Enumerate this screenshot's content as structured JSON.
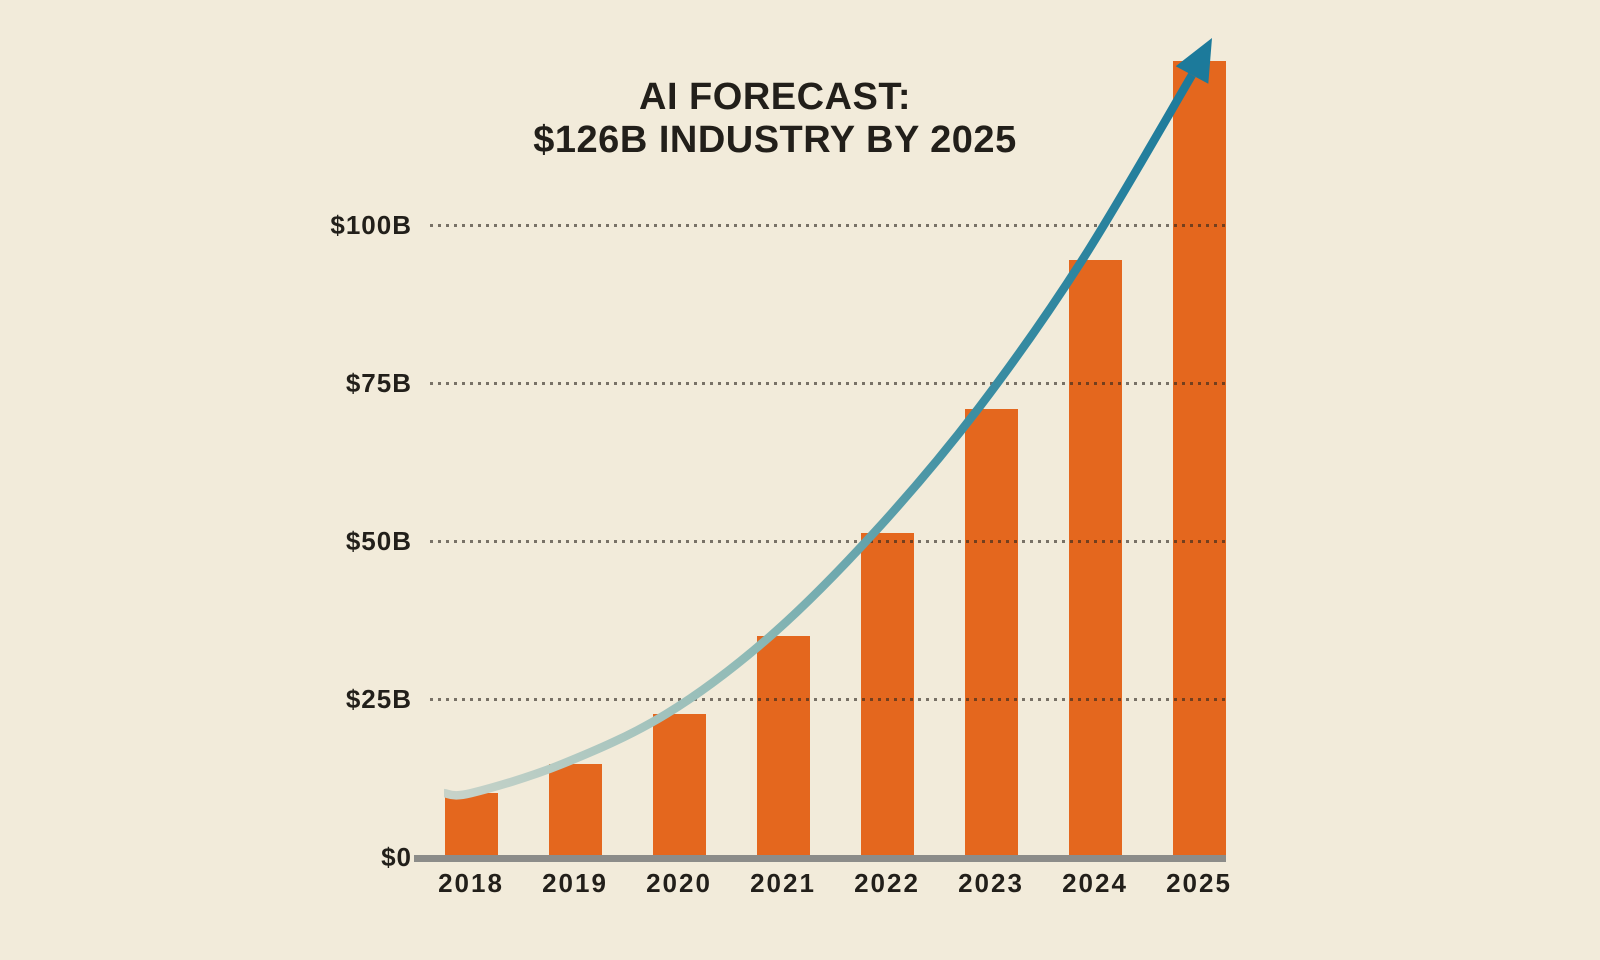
{
  "chart": {
    "title_line1": "AI FORECAST:",
    "title_line2": "$126B INDUSTRY BY 2025"
  },
  "chart_data": {
    "type": "bar",
    "title": "AI FORECAST: $126B INDUSTRY BY 2025",
    "unit": "billion USD",
    "categories": [
      "2018",
      "2019",
      "2020",
      "2021",
      "2022",
      "2023",
      "2024",
      "2025"
    ],
    "values": [
      10.1,
      14.7,
      22.6,
      34.9,
      51.3,
      70.9,
      94.4,
      126
    ],
    "y_ticks": [
      {
        "value": 0,
        "label": "$0"
      },
      {
        "value": 25,
        "label": "$25B"
      },
      {
        "value": 50,
        "label": "$50B"
      },
      {
        "value": 75,
        "label": "$75B"
      },
      {
        "value": 100,
        "label": "$100B"
      }
    ],
    "ylim": [
      0,
      130
    ],
    "grid": "dotted horizontal lines, drawn over bars",
    "legend": "none",
    "annotations": [
      "curved exponential growth trend arrow from 2018 bar top to above 2025 bar"
    ],
    "colors": {
      "background": "#F2EBDA",
      "bar": "#E4671E",
      "text": "#221F1A",
      "axis_line": "#8C8C89",
      "grid_dot": "rgba(45,38,30,0.62)",
      "trend_start": "#C7D3C9",
      "trend_mid": "#3E8FA3",
      "trend_end": "#1C7A9B"
    }
  }
}
